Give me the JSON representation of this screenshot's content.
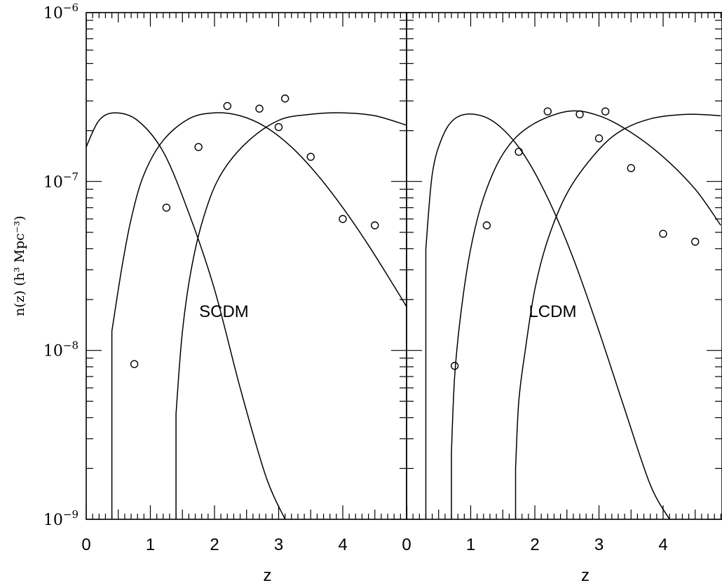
{
  "figure": {
    "ylabel": "n(z)  (h³ Mpc⁻³)",
    "xlabel": "z",
    "y_tick_labels": [
      {
        "base": "10",
        "exp": "−6"
      },
      {
        "base": "10",
        "exp": "−7"
      },
      {
        "base": "10",
        "exp": "−8"
      },
      {
        "base": "10",
        "exp": "−9"
      }
    ]
  },
  "chart_data": [
    {
      "type": "scatter",
      "panel": "left",
      "annotation": "SCDM",
      "xlabel": "z",
      "ylabel": "n(z)  (h³ Mpc⁻³)",
      "x_tick_labels": [
        "0",
        "1",
        "2",
        "3",
        "4"
      ],
      "xlim": [
        0,
        5
      ],
      "ylim": [
        1e-09,
        1e-06
      ],
      "yscale": "log",
      "grid": false,
      "points": {
        "x": [
          0.75,
          1.25,
          1.75,
          2.2,
          2.7,
          3.0,
          3.1,
          3.5,
          4.0,
          4.5
        ],
        "y": [
          8.3e-09,
          7e-08,
          1.6e-07,
          2.8e-07,
          2.7e-07,
          2.1e-07,
          3.1e-07,
          1.4e-07,
          6e-08,
          5.5e-08
        ]
      },
      "curves": [
        {
          "x": [
            0.0,
            0.2,
            0.45,
            0.8,
            1.2,
            1.6,
            2.0,
            2.4,
            2.8,
            3.1
          ],
          "y": [
            1.6e-07,
            2.3e-07,
            2.55e-07,
            2.3e-07,
            1.5e-07,
            6.5e-08,
            2.3e-08,
            6e-09,
            1.8e-09,
            1e-09
          ]
        },
        {
          "x": [
            0.4,
            0.4,
            0.55,
            0.7,
            0.9,
            1.2,
            1.6,
            2.0,
            2.4,
            2.8,
            3.2,
            3.6,
            4.0,
            4.4,
            4.8,
            5.0
          ],
          "y": [
            1e-09,
            1.3e-08,
            3e-08,
            6e-08,
            1.1e-07,
            1.75e-07,
            2.35e-07,
            2.55e-07,
            2.45e-07,
            2.1e-07,
            1.6e-07,
            1.1e-07,
            7e-08,
            4.2e-08,
            2.4e-08,
            1.8e-08
          ]
        },
        {
          "x": [
            1.4,
            1.4,
            1.5,
            1.65,
            1.85,
            2.1,
            2.5,
            3.0,
            3.5,
            4.0,
            4.5,
            5.0
          ],
          "y": [
            1e-09,
            4.2e-09,
            1.3e-08,
            3.2e-08,
            6.5e-08,
            1.1e-07,
            1.7e-07,
            2.3e-07,
            2.5e-07,
            2.55e-07,
            2.45e-07,
            2.15e-07
          ]
        }
      ]
    },
    {
      "type": "scatter",
      "panel": "right",
      "annotation": "LCDM",
      "xlabel": "z",
      "ylabel": "",
      "x_tick_labels": [
        "0",
        "1",
        "2",
        "3",
        "4"
      ],
      "xlim": [
        0,
        4.9
      ],
      "ylim": [
        1e-09,
        1e-06
      ],
      "yscale": "log",
      "grid": false,
      "points": {
        "x": [
          0.75,
          1.25,
          1.75,
          2.2,
          2.7,
          3.0,
          3.1,
          3.5,
          4.0,
          4.5
        ],
        "y": [
          8.1e-09,
          5.5e-08,
          1.5e-07,
          2.6e-07,
          2.5e-07,
          1.8e-07,
          2.6e-07,
          1.2e-07,
          4.9e-08,
          4.4e-08
        ]
      },
      "curves": [
        {
          "x": [
            0.3,
            0.3,
            0.4,
            0.55,
            0.75,
            1.05,
            1.4,
            1.8,
            2.2,
            2.6,
            3.0,
            3.4,
            3.8,
            4.1
          ],
          "y": [
            1e-09,
            4e-08,
            1.1e-07,
            1.8e-07,
            2.35e-07,
            2.5e-07,
            2.2e-07,
            1.5e-07,
            8e-08,
            3.5e-08,
            1.3e-08,
            4.5e-09,
            1.6e-09,
            1e-09
          ]
        },
        {
          "x": [
            0.7,
            0.7,
            0.75,
            0.85,
            1.0,
            1.2,
            1.5,
            1.9,
            2.5,
            3.0,
            3.5,
            4.0,
            4.5,
            4.9
          ],
          "y": [
            1e-09,
            2.5e-09,
            7e-09,
            1.7e-08,
            4e-08,
            8e-08,
            1.45e-07,
            2.1e-07,
            2.6e-07,
            2.45e-07,
            1.95e-07,
            1.4e-07,
            9e-08,
            5.5e-08
          ]
        },
        {
          "x": [
            1.7,
            1.7,
            1.75,
            1.85,
            2.0,
            2.2,
            2.5,
            2.9,
            3.3,
            3.8,
            4.4,
            4.9
          ],
          "y": [
            1e-09,
            2e-09,
            5e-09,
            1e-08,
            2.3e-08,
            4.5e-08,
            8.5e-08,
            1.4e-07,
            1.95e-07,
            2.35e-07,
            2.5e-07,
            2.45e-07
          ]
        }
      ]
    }
  ]
}
